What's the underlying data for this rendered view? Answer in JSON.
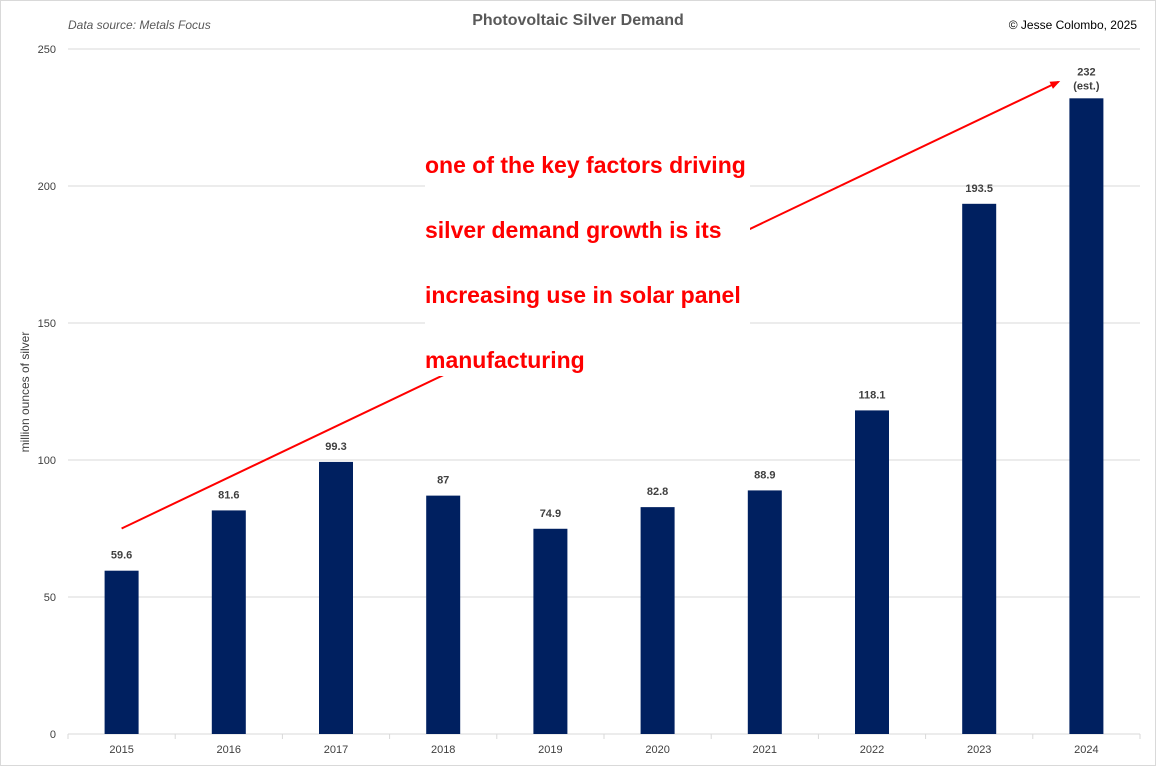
{
  "header": {
    "source": "Data source: Metals Focus",
    "title": "Photovoltaic Silver Demand",
    "copyright": "© Jesse Colombo, 2025"
  },
  "annotation": {
    "lines": [
      "one of the key factors driving",
      "silver demand growth is its",
      "increasing use in solar panel",
      "manufacturing"
    ]
  },
  "colors": {
    "bar": "#002060",
    "arrow": "#ff0000",
    "grid": "#d9d9d9"
  },
  "chart_data": {
    "type": "bar",
    "title": "Photovoltaic Silver Demand",
    "xlabel": "",
    "ylabel": "million ounces of silver",
    "ylim": [
      0,
      250
    ],
    "yticks": [
      0,
      50,
      100,
      150,
      200,
      250
    ],
    "categories": [
      "2015",
      "2016",
      "2017",
      "2018",
      "2019",
      "2020",
      "2021",
      "2022",
      "2023",
      "2024"
    ],
    "values": [
      59.6,
      81.6,
      99.3,
      87,
      74.9,
      82.8,
      88.9,
      118.1,
      193.5,
      232
    ],
    "data_labels": [
      "59.6",
      "81.6",
      "99.3",
      "87",
      "74.9",
      "82.8",
      "88.9",
      "118.1",
      "193.5",
      "232"
    ],
    "data_label_notes": {
      "9": "(est.)"
    },
    "grid": true,
    "legend": "none",
    "trend_arrow": {
      "from_category": "2015",
      "from_value": 75,
      "to_category": "2024",
      "to_value": 238
    }
  }
}
